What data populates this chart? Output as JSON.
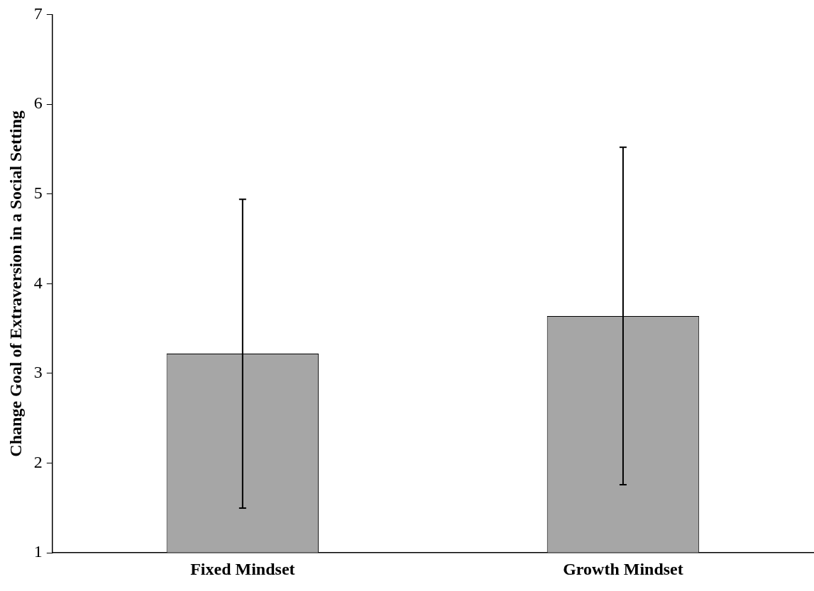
{
  "chart_data": {
    "type": "bar",
    "ylabel": "Change Goal of Extraversion in a Social Setting",
    "categories": [
      "Fixed Mindset",
      "Growth Mindset"
    ],
    "values": [
      3.22,
      3.64
    ],
    "errors": [
      1.72,
      1.88
    ],
    "color": "#a6a6a6",
    "ylim": [
      1,
      7
    ],
    "yticks": [
      1,
      2,
      3,
      4,
      5,
      6,
      7
    ],
    "grid": false,
    "legend": false
  }
}
